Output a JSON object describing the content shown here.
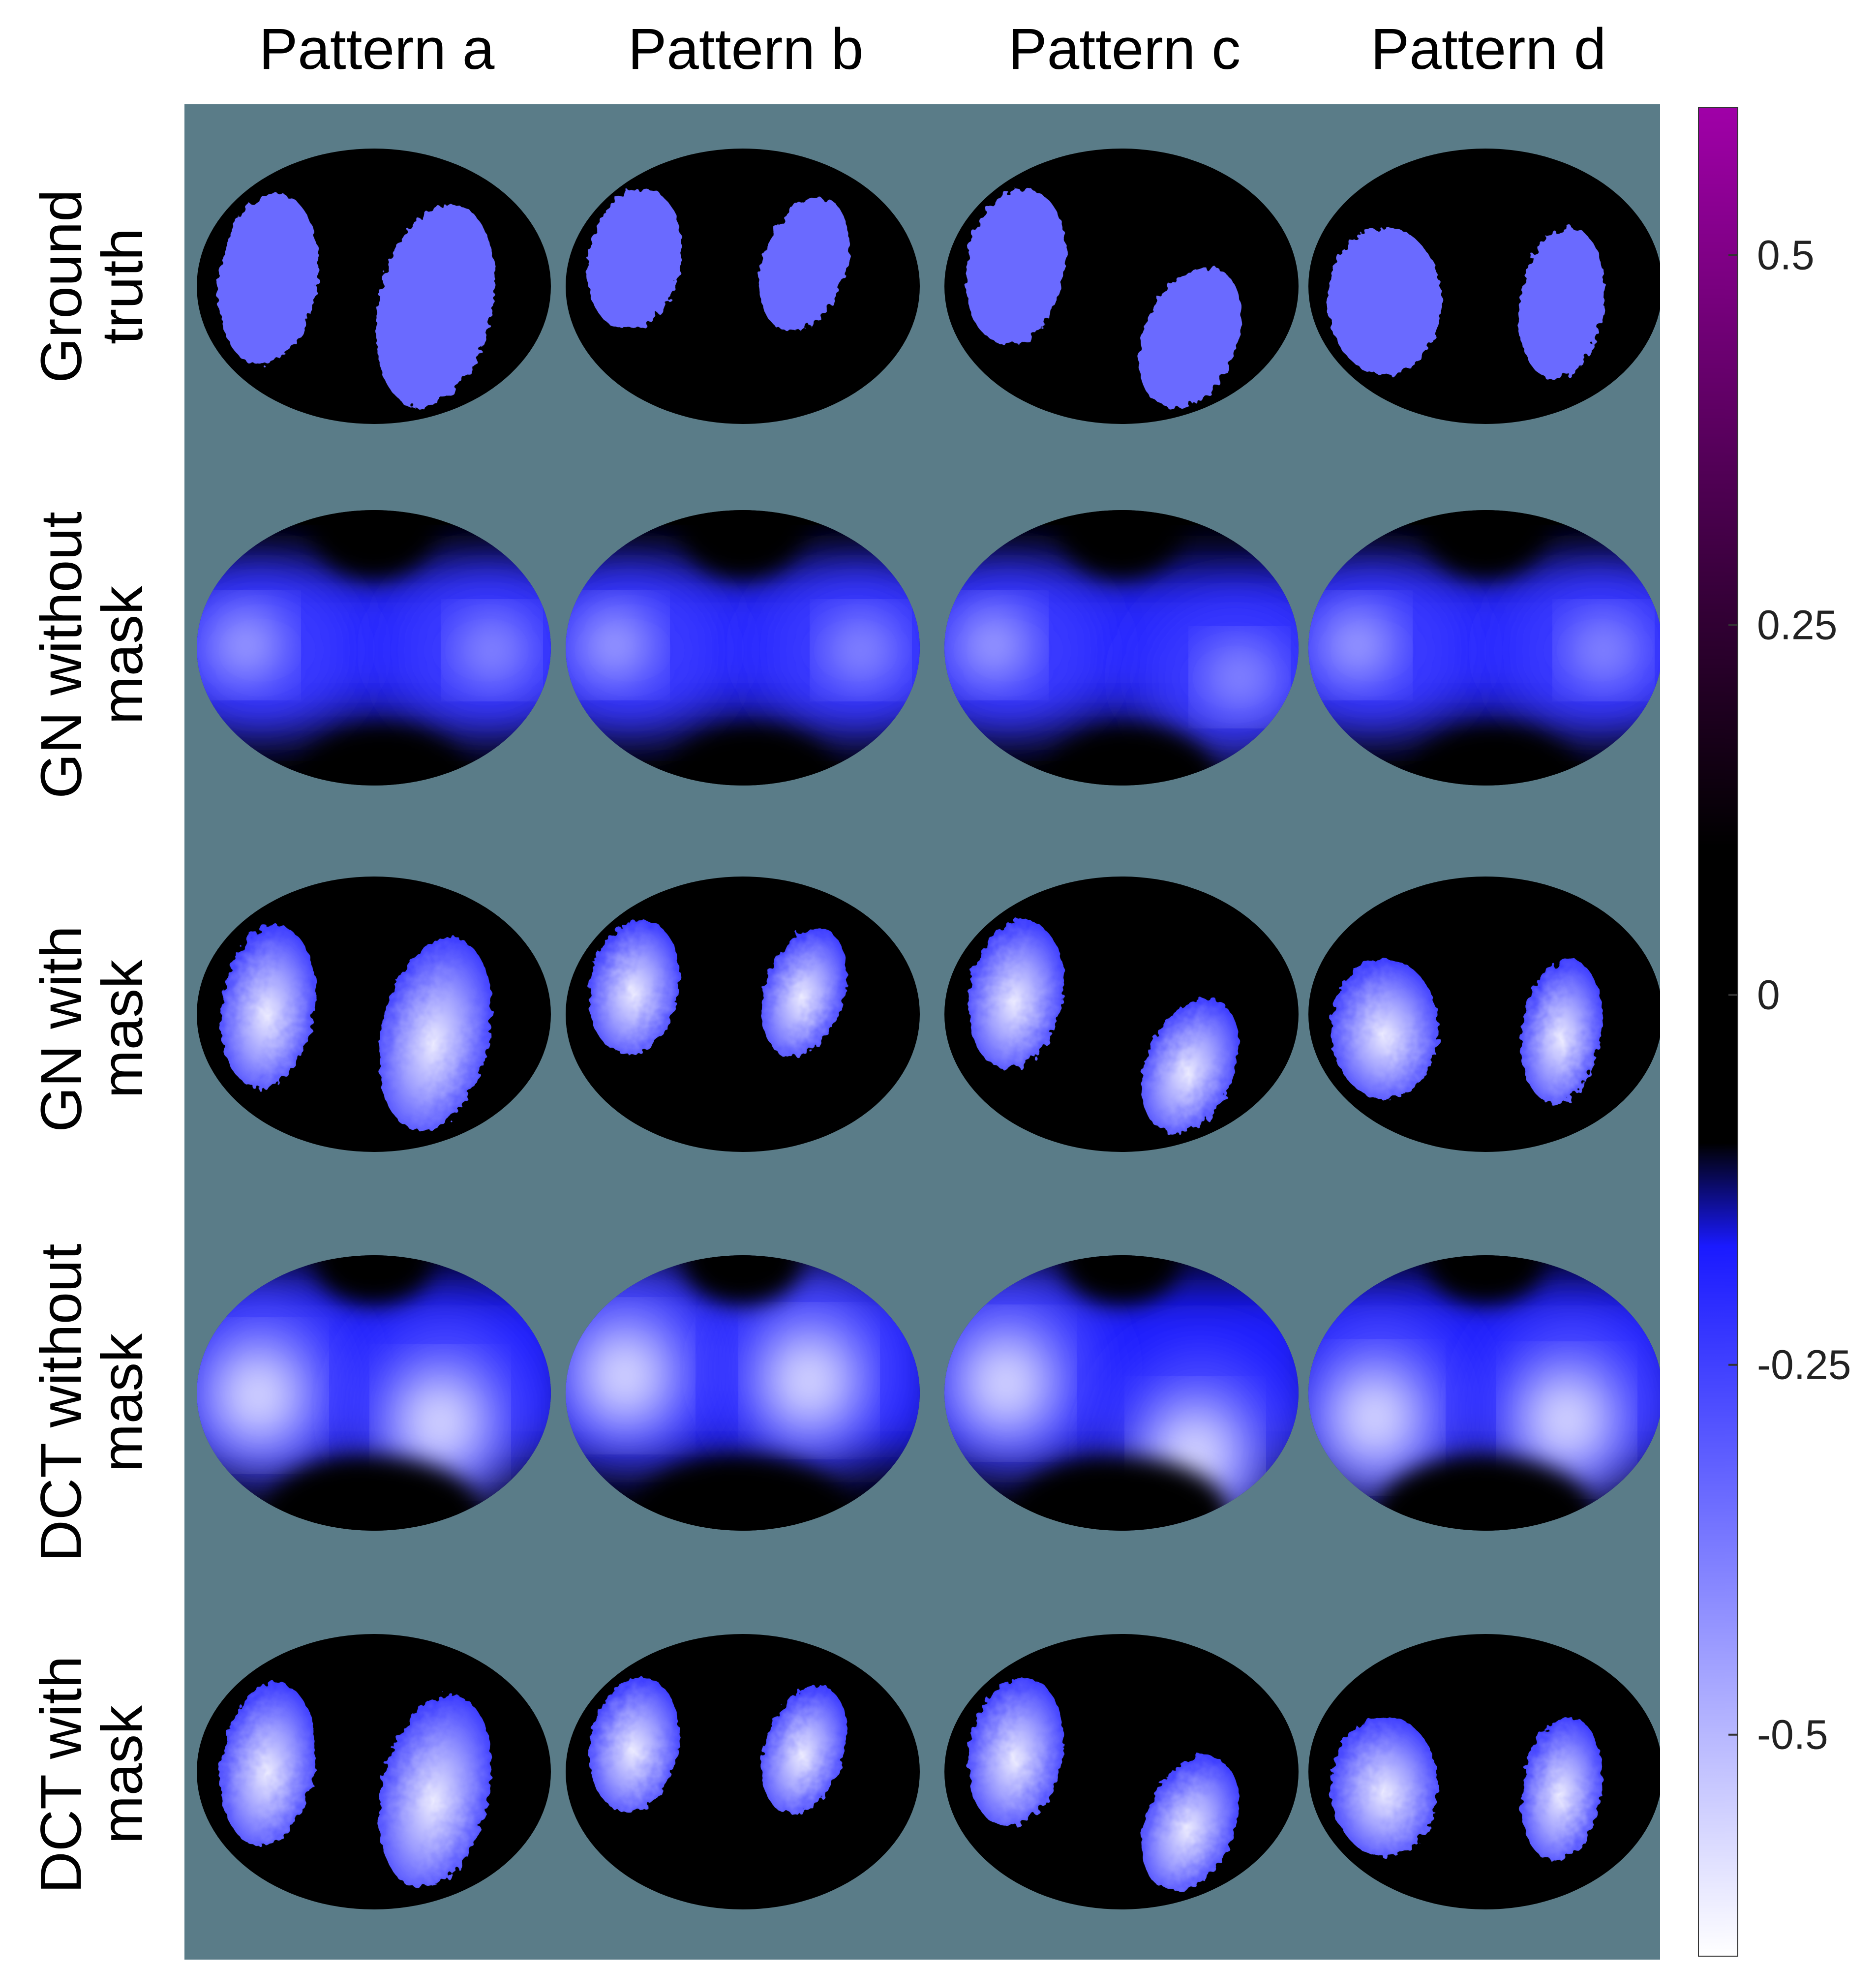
{
  "columns": [
    "Pattern a",
    "Pattern b",
    "Pattern c",
    "Pattern d"
  ],
  "rows": [
    {
      "line1": "Ground",
      "line2": "truth"
    },
    {
      "line1": "GN without",
      "line2": "mask"
    },
    {
      "line1": "GN with",
      "line2": "mask"
    },
    {
      "line1": "DCT without",
      "line2": "mask"
    },
    {
      "line1": "DCT with",
      "line2": "mask"
    }
  ],
  "colorbar": {
    "min": -0.65,
    "max": 0.6,
    "ticks": [
      {
        "value": 0.5,
        "label": "0.5"
      },
      {
        "value": 0.25,
        "label": "0.25"
      },
      {
        "value": 0,
        "label": "0"
      },
      {
        "value": -0.25,
        "label": "-0.25"
      },
      {
        "value": -0.5,
        "label": "-0.5"
      }
    ],
    "colors": {
      "max": "#a000a8",
      "zero": "#000000",
      "mid_neg": "#1a1aff",
      "min": "#ffffff"
    }
  },
  "colors": {
    "background": "#5a7c88",
    "domain": "#000000",
    "lung_uniform": "#6a6aff",
    "reconstruction_core": "#e6e6ff",
    "reconstruction_edge": "#2626ff"
  }
}
